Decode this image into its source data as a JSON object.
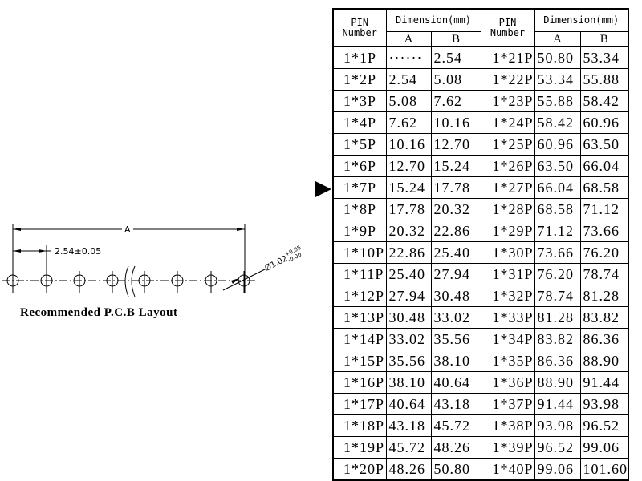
{
  "drawing": {
    "dimension_a_label": "A",
    "pitch_label": "2.54±0.05",
    "hole_diameter_label": "Ø1.02",
    "hole_tol_upper": "+0.05",
    "hole_tol_lower": "-0.00",
    "caption": "Recommended P.C.B Layout"
  },
  "table": {
    "header_pin": "PIN",
    "header_number": "Number",
    "header_dimension": "Dimension(mm)",
    "header_a": "A",
    "header_b": "B",
    "left": [
      [
        "1*1P",
        "······",
        "2.54"
      ],
      [
        "1*2P",
        "2.54",
        "5.08"
      ],
      [
        "1*3P",
        "5.08",
        "7.62"
      ],
      [
        "1*4P",
        "7.62",
        "10.16"
      ],
      [
        "1*5P",
        "10.16",
        "12.70"
      ],
      [
        "1*6P",
        "12.70",
        "15.24"
      ],
      [
        "1*7P",
        "15.24",
        "17.78"
      ],
      [
        "1*8P",
        "17.78",
        "20.32"
      ],
      [
        "1*9P",
        "20.32",
        "22.86"
      ],
      [
        "1*10P",
        "22.86",
        "25.40"
      ],
      [
        "1*11P",
        "25.40",
        "27.94"
      ],
      [
        "1*12P",
        "27.94",
        "30.48"
      ],
      [
        "1*13P",
        "30.48",
        "33.02"
      ],
      [
        "1*14P",
        "33.02",
        "35.56"
      ],
      [
        "1*15P",
        "35.56",
        "38.10"
      ],
      [
        "1*16P",
        "38.10",
        "40.64"
      ],
      [
        "1*17P",
        "40.64",
        "43.18"
      ],
      [
        "1*18P",
        "43.18",
        "45.72"
      ],
      [
        "1*19P",
        "45.72",
        "48.26"
      ],
      [
        "1*20P",
        "48.26",
        "50.80"
      ]
    ],
    "right": [
      [
        "1*21P",
        "50.80",
        "53.34"
      ],
      [
        "1*22P",
        "53.34",
        "55.88"
      ],
      [
        "1*23P",
        "55.88",
        "58.42"
      ],
      [
        "1*24P",
        "58.42",
        "60.96"
      ],
      [
        "1*25P",
        "60.96",
        "63.50"
      ],
      [
        "1*26P",
        "63.50",
        "66.04"
      ],
      [
        "1*27P",
        "66.04",
        "68.58"
      ],
      [
        "1*28P",
        "68.58",
        "71.12"
      ],
      [
        "1*29P",
        "71.12",
        "73.66"
      ],
      [
        "1*30P",
        "73.66",
        "76.20"
      ],
      [
        "1*31P",
        "76.20",
        "78.74"
      ],
      [
        "1*32P",
        "78.74",
        "81.28"
      ],
      [
        "1*33P",
        "81.28",
        "83.82"
      ],
      [
        "1*34P",
        "83.82",
        "86.36"
      ],
      [
        "1*35P",
        "86.36",
        "88.90"
      ],
      [
        "1*36P",
        "88.90",
        "91.44"
      ],
      [
        "1*37P",
        "91.44",
        "93.98"
      ],
      [
        "1*38P",
        "93.98",
        "96.52"
      ],
      [
        "1*39P",
        "96.52",
        "99.06"
      ],
      [
        "1*40P",
        "99.06",
        "101.60"
      ]
    ]
  }
}
